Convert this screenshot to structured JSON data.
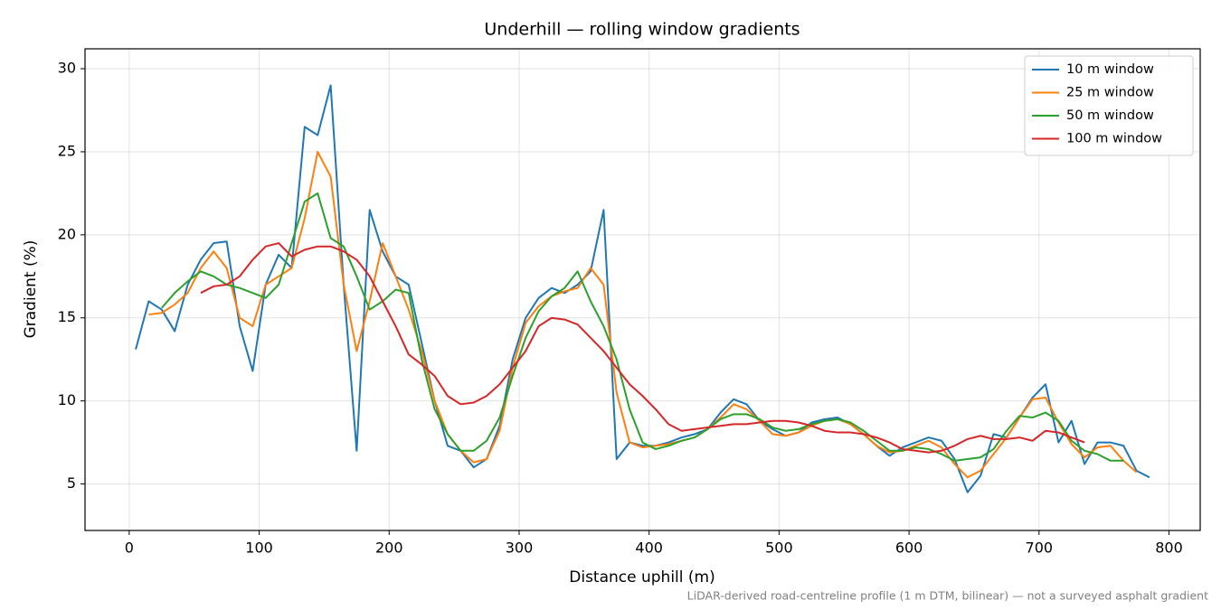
{
  "chart_data": {
    "type": "line",
    "title": "Underhill — rolling window gradients",
    "xlabel": "Distance uphill (m)",
    "ylabel": "Gradient (%)",
    "note": "LiDAR-derived road-centreline profile (1 m DTM, bilinear) — not a surveyed asphalt gradient",
    "x": [
      5,
      15,
      25,
      35,
      45,
      55,
      65,
      75,
      85,
      95,
      105,
      115,
      125,
      135,
      145,
      155,
      165,
      175,
      185,
      195,
      205,
      215,
      225,
      235,
      245,
      255,
      265,
      275,
      285,
      295,
      305,
      315,
      325,
      335,
      345,
      355,
      365,
      375,
      385,
      395,
      405,
      415,
      425,
      435,
      445,
      455,
      465,
      475,
      485,
      495,
      505,
      515,
      525,
      535,
      545,
      555,
      565,
      575,
      585,
      595,
      605,
      615,
      625,
      635,
      645,
      655,
      665,
      675,
      685,
      695,
      705,
      715,
      725,
      735,
      745,
      755,
      765,
      775,
      785
    ],
    "series": [
      {
        "name": "10 m window",
        "color": "#1f77b4",
        "values": [
          13.1,
          16.0,
          15.5,
          14.2,
          17.0,
          18.5,
          19.5,
          19.6,
          14.5,
          11.8,
          17.0,
          18.8,
          18.0,
          26.5,
          26.0,
          29.0,
          17.0,
          7.0,
          21.5,
          19.0,
          17.5,
          17.0,
          13.5,
          10.0,
          7.3,
          7.0,
          6.0,
          6.5,
          8.5,
          12.5,
          15.0,
          16.2,
          16.8,
          16.5,
          17.0,
          17.8,
          21.5,
          6.5,
          7.5,
          7.3,
          7.3,
          7.5,
          7.8,
          8.0,
          8.3,
          9.3,
          10.1,
          9.8,
          8.8,
          8.3,
          7.9,
          8.1,
          8.7,
          8.9,
          9.0,
          8.6,
          8.0,
          7.3,
          6.7,
          7.2,
          7.5,
          7.8,
          7.6,
          6.5,
          4.5,
          5.5,
          8.0,
          7.8,
          9.0,
          10.2,
          11.0,
          7.5,
          8.8,
          6.2,
          7.5,
          7.5,
          7.3,
          5.8,
          5.4
        ]
      },
      {
        "name": "25 m window",
        "color": "#ff7f0e",
        "values": [
          null,
          15.2,
          15.3,
          15.8,
          16.5,
          18.0,
          19.0,
          18.0,
          15.0,
          14.5,
          17.0,
          17.5,
          18.0,
          21.0,
          25.0,
          23.5,
          17.0,
          13.0,
          16.0,
          19.5,
          17.5,
          15.5,
          13.0,
          10.0,
          8.0,
          7.0,
          6.3,
          6.5,
          8.2,
          12.0,
          14.7,
          15.7,
          16.3,
          16.6,
          16.8,
          18.0,
          17.0,
          10.5,
          7.5,
          7.2,
          7.3,
          7.4,
          7.6,
          7.8,
          8.3,
          9.0,
          9.8,
          9.5,
          8.8,
          8.0,
          7.9,
          8.1,
          8.5,
          8.8,
          8.9,
          8.6,
          8.0,
          7.3,
          6.9,
          7.0,
          7.3,
          7.6,
          7.2,
          6.2,
          5.4,
          5.8,
          6.8,
          7.8,
          9.0,
          10.1,
          10.2,
          8.7,
          7.4,
          6.6,
          7.2,
          7.3,
          6.4,
          5.7,
          null
        ]
      },
      {
        "name": "50 m window",
        "color": "#2ca02c",
        "values": [
          null,
          null,
          15.6,
          16.5,
          17.2,
          17.8,
          17.5,
          17.0,
          16.8,
          16.5,
          16.2,
          17.0,
          19.5,
          22.0,
          22.5,
          19.8,
          19.3,
          17.5,
          15.5,
          16.0,
          16.7,
          16.5,
          12.5,
          9.5,
          8.0,
          7.0,
          7.0,
          7.6,
          9.0,
          11.5,
          13.8,
          15.4,
          16.3,
          16.8,
          17.8,
          16.0,
          14.5,
          12.5,
          9.5,
          7.5,
          7.1,
          7.3,
          7.6,
          7.8,
          8.3,
          8.9,
          9.2,
          9.2,
          8.9,
          8.4,
          8.2,
          8.3,
          8.6,
          8.8,
          8.9,
          8.7,
          8.2,
          7.6,
          7.0,
          7.0,
          7.2,
          7.1,
          6.8,
          6.4,
          6.5,
          6.6,
          7.1,
          8.2,
          9.1,
          9.0,
          9.3,
          8.8,
          7.6,
          7.0,
          6.8,
          6.4,
          6.4,
          null,
          null
        ]
      },
      {
        "name": "100 m window",
        "color": "#d62728",
        "values": [
          null,
          null,
          null,
          null,
          null,
          16.5,
          16.9,
          17.0,
          17.5,
          18.5,
          19.3,
          19.5,
          18.7,
          19.1,
          19.3,
          19.3,
          19.0,
          18.5,
          17.5,
          16.0,
          14.5,
          12.8,
          12.2,
          11.5,
          10.3,
          9.8,
          9.9,
          10.3,
          11.0,
          12.0,
          13.0,
          14.5,
          15.0,
          14.9,
          14.6,
          13.8,
          13.0,
          12.0,
          11.0,
          10.3,
          9.5,
          8.6,
          8.2,
          8.3,
          8.4,
          8.5,
          8.6,
          8.6,
          8.7,
          8.8,
          8.8,
          8.7,
          8.5,
          8.2,
          8.1,
          8.1,
          8.0,
          7.8,
          7.5,
          7.1,
          7.0,
          6.9,
          7.0,
          7.3,
          7.7,
          7.9,
          7.7,
          7.7,
          7.8,
          7.6,
          8.2,
          8.1,
          7.8,
          7.5,
          null,
          null,
          null,
          null,
          null
        ]
      }
    ],
    "xlim": [
      -34,
      824
    ],
    "ylim": [
      2.2,
      31.2
    ],
    "xticks": [
      0,
      100,
      200,
      300,
      400,
      500,
      600,
      700,
      800
    ],
    "yticks": [
      5,
      10,
      15,
      20,
      25,
      30
    ],
    "grid": true,
    "legend": "upper right"
  }
}
